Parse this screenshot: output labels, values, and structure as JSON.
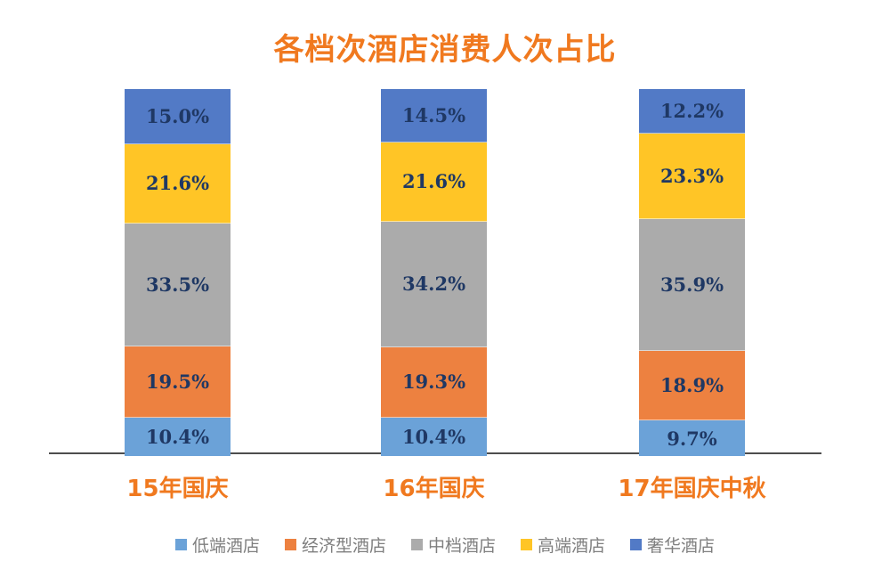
{
  "title": {
    "text": "各档次酒店消费人次占比"
  },
  "chart_data": {
    "type": "bar",
    "stacked": true,
    "orientation": "vertical",
    "unit": "%",
    "title": "各档次酒店消费人次占比",
    "xlabel": "",
    "ylabel": "",
    "ylim": [
      0,
      100
    ],
    "grid": false,
    "legend_position": "bottom",
    "value_labels": true,
    "label_format": "one-decimal-percent",
    "categories": [
      "15年国庆",
      "16年国庆",
      "17年国庆中秋"
    ],
    "series": [
      {
        "name": "低端酒店",
        "color": "#6BA2D8",
        "values": [
          10.4,
          10.4,
          9.7
        ]
      },
      {
        "name": "经济型酒店",
        "color": "#ED8140",
        "values": [
          19.5,
          19.3,
          18.9
        ]
      },
      {
        "name": "中档酒店",
        "color": "#ABABAB",
        "values": [
          33.5,
          34.2,
          35.9
        ]
      },
      {
        "name": "高端酒店",
        "color": "#FFC526",
        "values": [
          21.6,
          21.6,
          23.3
        ]
      },
      {
        "name": "奢华酒店",
        "color": "#527AC6",
        "values": [
          15.0,
          14.5,
          12.2
        ]
      }
    ]
  },
  "styles": {
    "background": "#FFFFFF",
    "title_color": "#F0791F",
    "category_label_color": "#F0791F",
    "value_label_color": "#1F3864",
    "axis_line_color": "#4D4D4D",
    "legend_text_color": "#7F7F7F",
    "segment_divider_color": "rgba(255,255,255,0.55)"
  }
}
